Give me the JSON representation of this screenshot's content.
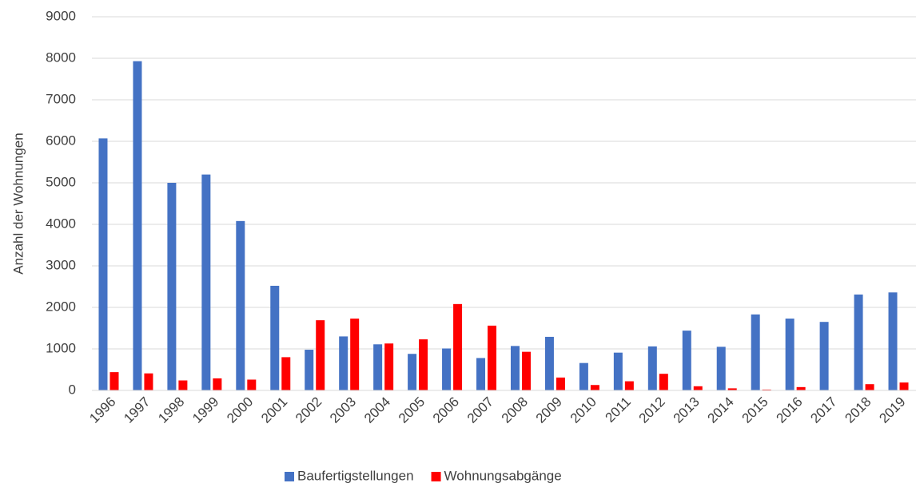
{
  "chart_data": {
    "type": "bar",
    "y_label": "Anzahl der Wohnungen",
    "categories": [
      "1996",
      "1997",
      "1998",
      "1999",
      "2000",
      "2001",
      "2002",
      "2003",
      "2004",
      "2005",
      "2006",
      "2007",
      "2008",
      "2009",
      "2010",
      "2011",
      "2012",
      "2013",
      "2014",
      "2015",
      "2016",
      "2017",
      "2018",
      "2019"
    ],
    "series": [
      {
        "name": "Baufertigstellungen",
        "color": "#4472c4",
        "values": [
          6070,
          7930,
          5000,
          5200,
          4080,
          2520,
          980,
          1300,
          1110,
          880,
          1010,
          780,
          1070,
          1290,
          660,
          910,
          1060,
          1440,
          1050,
          1830,
          1730,
          1650,
          2310,
          2360
        ]
      },
      {
        "name": "Wohnungsabgänge",
        "color": "#ff0000",
        "values": [
          440,
          410,
          240,
          290,
          260,
          800,
          1690,
          1730,
          1130,
          1230,
          2080,
          1560,
          930,
          310,
          130,
          220,
          400,
          100,
          50,
          20,
          80,
          0,
          150,
          190
        ]
      }
    ],
    "ylim": [
      0,
      9000
    ],
    "yticks": [
      0,
      1000,
      2000,
      3000,
      4000,
      5000,
      6000,
      7000,
      8000,
      9000
    ],
    "grid": true,
    "legend": "bottom"
  }
}
